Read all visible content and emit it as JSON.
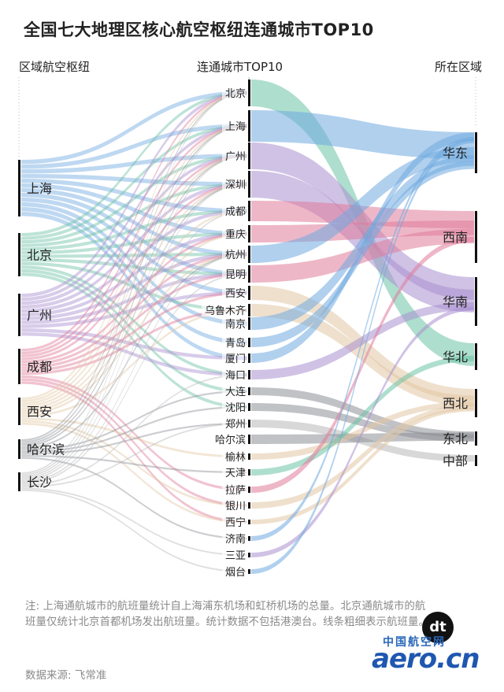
{
  "title": "全国七大地理区核心航空枢纽连通城市TOP10",
  "headers": {
    "left": "区域航空枢纽",
    "middle": "连通城市TOP10",
    "right": "所在区域"
  },
  "hubs": [
    "上海",
    "北京",
    "广州",
    "成都",
    "西安",
    "哈尔滨",
    "长沙"
  ],
  "cities": [
    "北京",
    "上海",
    "广州",
    "深圳",
    "成都",
    "重庆",
    "杭州",
    "昆明",
    "西安",
    "乌鲁木齐",
    "南京",
    "青岛",
    "厦门",
    "海口",
    "大连",
    "沈阳",
    "郑州",
    "哈尔滨",
    "榆林",
    "天津",
    "拉萨",
    "银川",
    "西宁",
    "济南",
    "三亚",
    "烟台"
  ],
  "regions": [
    "华东",
    "西南",
    "华南",
    "华北",
    "西北",
    "东北",
    "中部"
  ],
  "colors": {
    "华东": "#6fa9e0",
    "西南": "#e07b9a",
    "华南": "#a98fd0",
    "华北": "#6cc2a6",
    "西北": "#e2c7a4",
    "东北": "#8c9096",
    "中部": "#b8b8b8"
  },
  "footnote": "注: 上海通航城市的航班量统计自上海浦东机场和虹桥机场的总量。北京通航城市的航班量仅统计北京首都机场发出航班量。统计数据不包括港澳台。线条粗细表示航班量。",
  "source": "数据来源: 飞常准",
  "logo": {
    "cn": "中国航空网",
    "en": "aero.cn",
    "badge": "dt"
  }
}
